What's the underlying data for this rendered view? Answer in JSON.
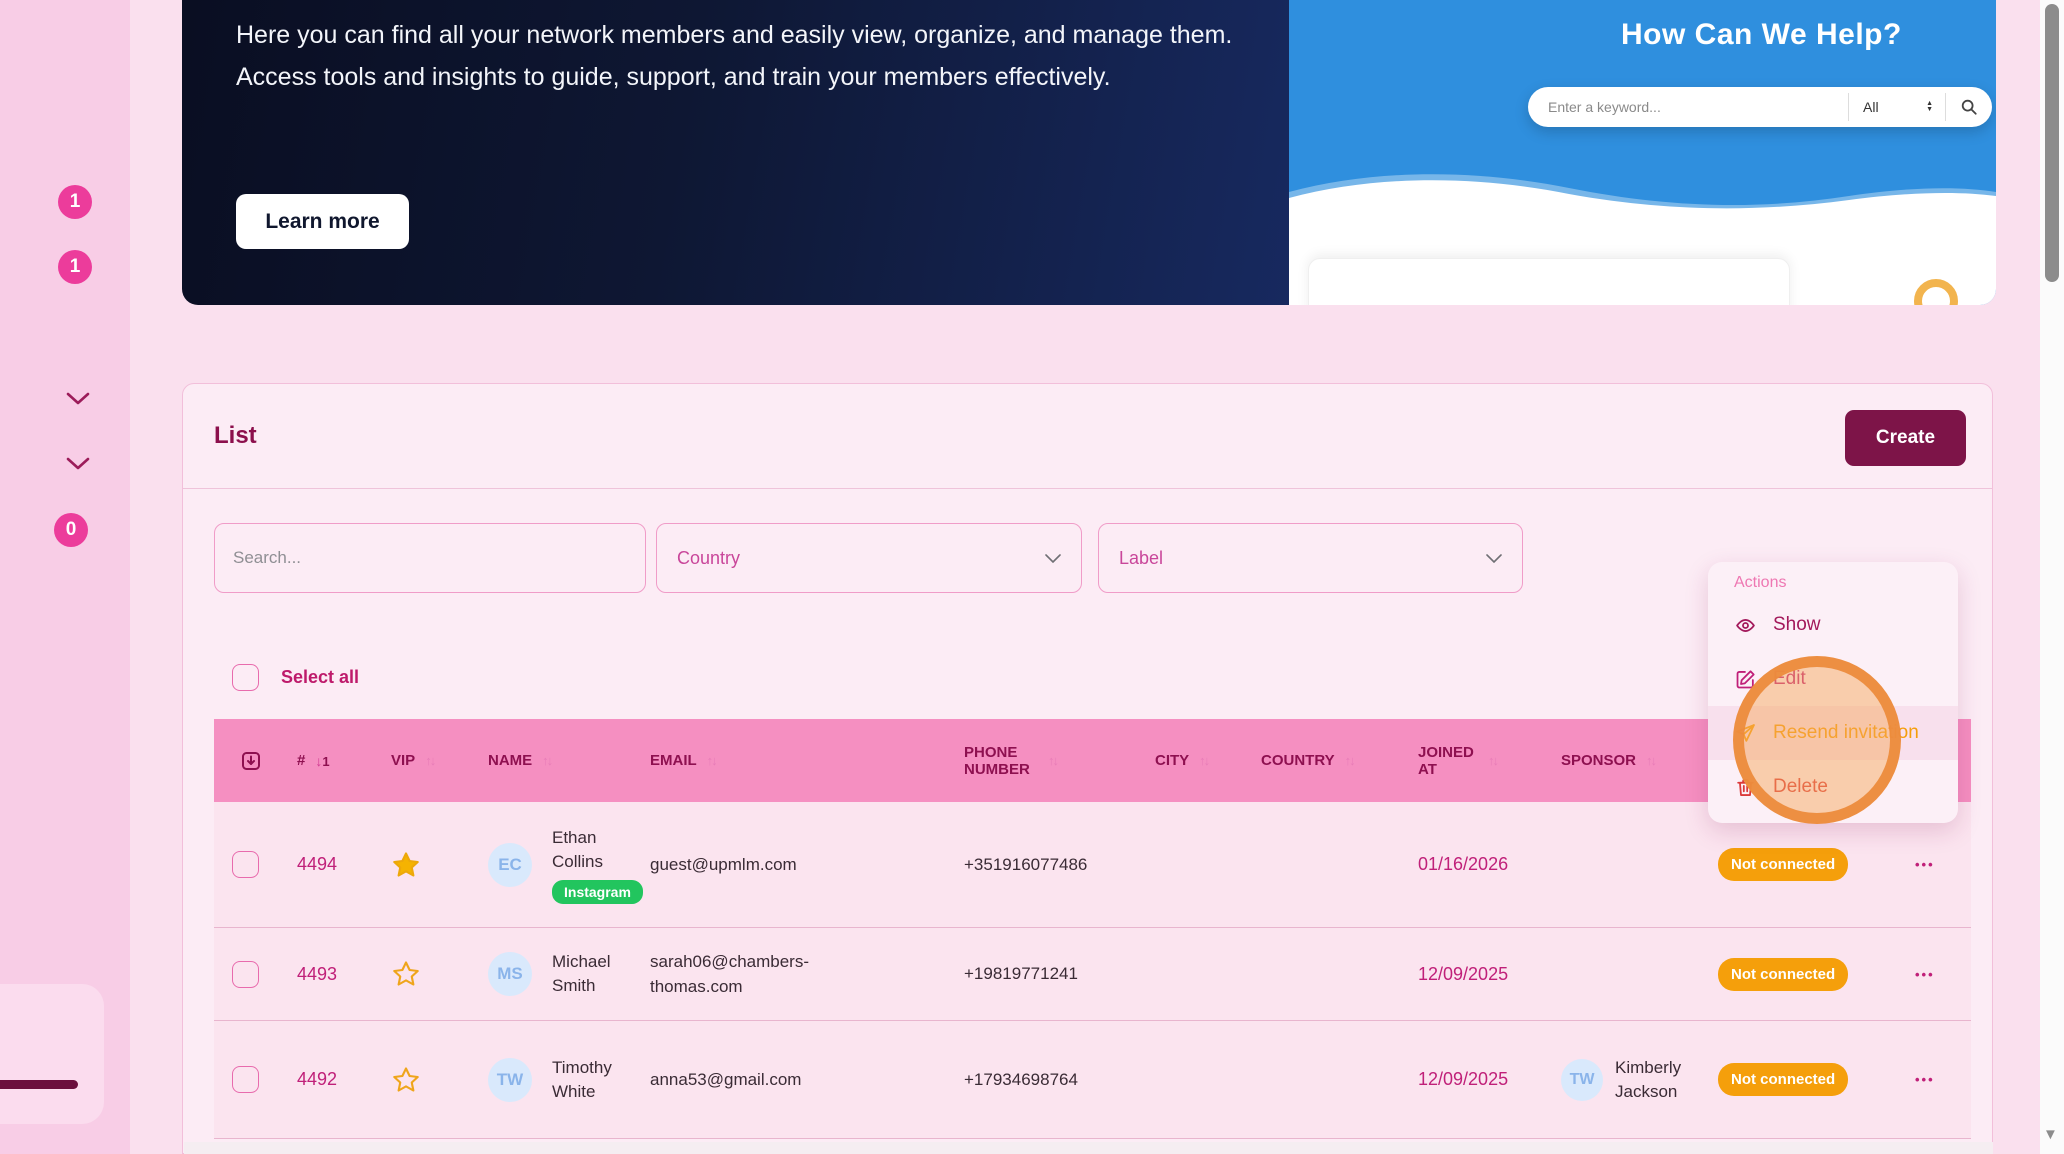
{
  "sidebar": {
    "badges": [
      "1",
      "1",
      "0"
    ]
  },
  "banner": {
    "description_line1": "Here you can find all your network members and easily view, organize, and manage them.",
    "description_line2": "Access tools and insights to guide, support, and train your members effectively.",
    "learn_more_label": "Learn more"
  },
  "help_widget": {
    "title": "How Can We Help?",
    "keyword_placeholder": "Enter a keyword...",
    "category_value": "All"
  },
  "list_card": {
    "title": "List",
    "create_label": "Create",
    "search_placeholder": "Search...",
    "country_filter": "Country",
    "label_filter": "Label",
    "select_all_label": "Select all",
    "columns": [
      {
        "label": "#",
        "sort": "active-desc",
        "sort_order": "1"
      },
      {
        "label": "VIP",
        "sort": "both"
      },
      {
        "label": "NAME",
        "sort": "both"
      },
      {
        "label": "EMAIL",
        "sort": "both"
      },
      {
        "label": "PHONE NUMBER",
        "sort": "both"
      },
      {
        "label": "CITY",
        "sort": "both"
      },
      {
        "label": "COUNTRY",
        "sort": "both"
      },
      {
        "label": "JOINED AT",
        "sort": "both"
      },
      {
        "label": "SPONSOR",
        "sort": "both"
      }
    ],
    "rows": [
      {
        "id": "4494",
        "vip": true,
        "initials": "EC",
        "name": "Ethan Collins",
        "network_label": "Instagram",
        "email": "guest@upmlm.com",
        "phone": "+351916077486",
        "city": "",
        "country": "",
        "joined_at": "01/16/2026",
        "sponsor": null,
        "status": "Not connected"
      },
      {
        "id": "4493",
        "vip": false,
        "initials": "MS",
        "name": "Michael Smith",
        "network_label": null,
        "email": "sarah06@chambers-thomas.com",
        "phone": "+19819771241",
        "city": "",
        "country": "",
        "joined_at": "12/09/2025",
        "sponsor": null,
        "status": "Not connected"
      },
      {
        "id": "4492",
        "vip": false,
        "initials": "TW",
        "name": "Timothy White",
        "network_label": null,
        "email": "anna53@gmail.com",
        "phone": "+17934698764",
        "city": "",
        "country": "",
        "joined_at": "12/09/2025",
        "sponsor": {
          "initials": "TW",
          "name": "Kimberly Jackson"
        },
        "status": "Not connected"
      }
    ]
  },
  "actions_menu": {
    "title": "Actions",
    "items": [
      {
        "icon": "eye-icon",
        "label": "Show",
        "color": "#a3195b"
      },
      {
        "icon": "edit-icon",
        "label": "Edit",
        "color": "#c02079"
      },
      {
        "icon": "send-icon",
        "label": "Resend invitation",
        "color": "#f59e0b",
        "highlighted": true
      },
      {
        "icon": "trash-icon",
        "label": "Delete",
        "color": "#db3a3a"
      }
    ]
  },
  "colors": {
    "accent_pink": "#ec3c9b",
    "table_header_pink": "#f58fc1",
    "burgundy_button": "#7d1448",
    "magenta_text": "#c02079",
    "status_orange": "#f59f0b",
    "network_green": "#22c55e",
    "click_indicator_orange": "#ec8b3c",
    "banner_navy": "#0e1733",
    "help_blue": "#2f8fde"
  }
}
